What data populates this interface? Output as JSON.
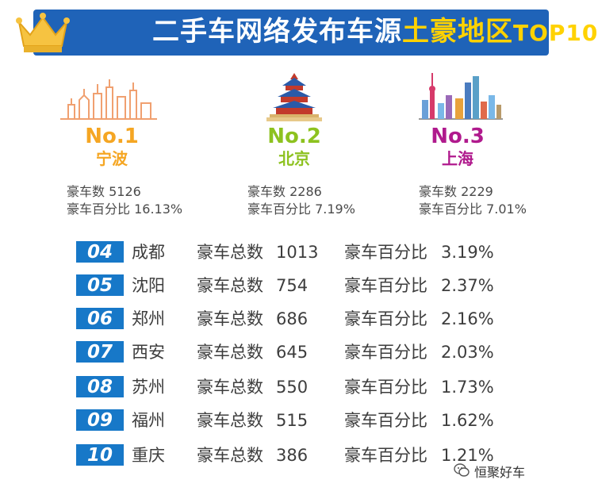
{
  "header": {
    "title_prefix": "二手车网络发布车源",
    "title_highlight": "土豪地区",
    "title_suffix": "TOP10"
  },
  "podium": [
    {
      "rank": "No.1",
      "city": "宁波",
      "count_line": "豪车数 5126",
      "pct_line": "豪车百分比 16.13%",
      "color": "#f5a623"
    },
    {
      "rank": "No.2",
      "city": "北京",
      "count_line": "豪车数 2286",
      "pct_line": "豪车百分比 7.19%",
      "color": "#8dc21f"
    },
    {
      "rank": "No.3",
      "city": "上海",
      "count_line": "豪车数 2229",
      "pct_line": "豪车百分比 7.01%",
      "color": "#b01a8d"
    }
  ],
  "table": {
    "count_label": "豪车总数",
    "pct_label": "豪车百分比",
    "rows": [
      {
        "no": "04",
        "city": "成都",
        "count": "1013",
        "pct": "3.19%"
      },
      {
        "no": "05",
        "city": "沈阳",
        "count": "754",
        "pct": "2.37%"
      },
      {
        "no": "06",
        "city": "郑州",
        "count": "686",
        "pct": "2.16%"
      },
      {
        "no": "07",
        "city": "西安",
        "count": "645",
        "pct": "2.03%"
      },
      {
        "no": "08",
        "city": "苏州",
        "count": "550",
        "pct": "1.73%"
      },
      {
        "no": "09",
        "city": "福州",
        "count": "515",
        "pct": "1.62%"
      },
      {
        "no": "10",
        "city": "重庆",
        "count": "386",
        "pct": "1.21%"
      }
    ]
  },
  "watermark": {
    "text": "恒聚好车",
    "icon": "wechat-icon"
  },
  "colors": {
    "banner": "#1f63b8",
    "highlight": "#ffd200",
    "badge": "#1778c8"
  }
}
